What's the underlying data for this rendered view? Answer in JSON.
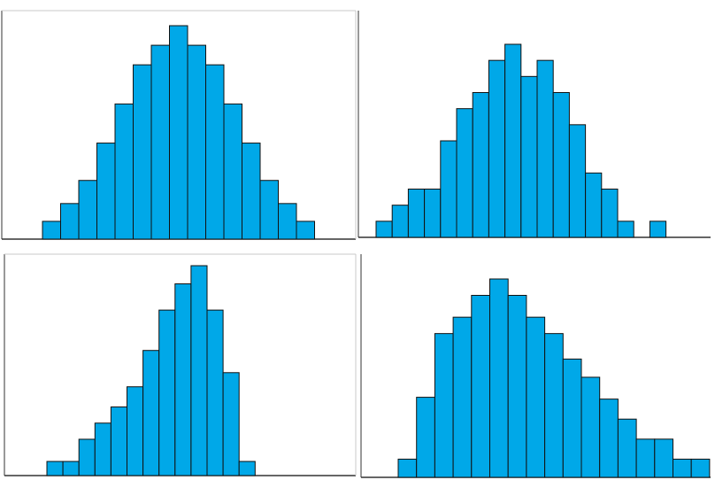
{
  "chart_data": [
    {
      "type": "bar",
      "title": "",
      "xlabel": "",
      "ylabel": "",
      "ylim": [
        0,
        12
      ],
      "values": [
        1,
        2,
        3.3,
        5.4,
        7.6,
        9.8,
        10.9,
        12,
        10.9,
        9.8,
        7.6,
        5.4,
        3.3,
        2,
        1
      ]
    },
    {
      "type": "bar",
      "title": "",
      "xlabel": "",
      "ylabel": "",
      "ylim": [
        0,
        12
      ],
      "values": [
        1,
        2,
        3,
        3,
        6,
        8,
        9,
        11,
        12,
        10,
        11,
        9,
        7,
        4,
        3,
        1,
        0,
        1
      ]
    },
    {
      "type": "bar",
      "title": "",
      "xlabel": "",
      "ylabel": "",
      "ylim": [
        0,
        12
      ],
      "values": [
        0.7,
        0.7,
        1.8,
        2.6,
        3.4,
        4.4,
        6.2,
        8.2,
        9.5,
        10.4,
        8.2,
        5.1,
        0.7
      ]
    },
    {
      "type": "bar",
      "title": "",
      "xlabel": "",
      "ylabel": "",
      "ylim": [
        0,
        12
      ],
      "values": [
        1,
        4.4,
        7.9,
        8.8,
        10,
        10.9,
        10,
        8.8,
        7.9,
        6.5,
        5.5,
        4.3,
        3.2,
        2.1,
        2.1,
        1,
        1
      ]
    }
  ],
  "colors": {
    "bar_fill": "#00a8e8",
    "bar_stroke": "#111111",
    "axis": "#333333",
    "background": "#ffffff"
  }
}
